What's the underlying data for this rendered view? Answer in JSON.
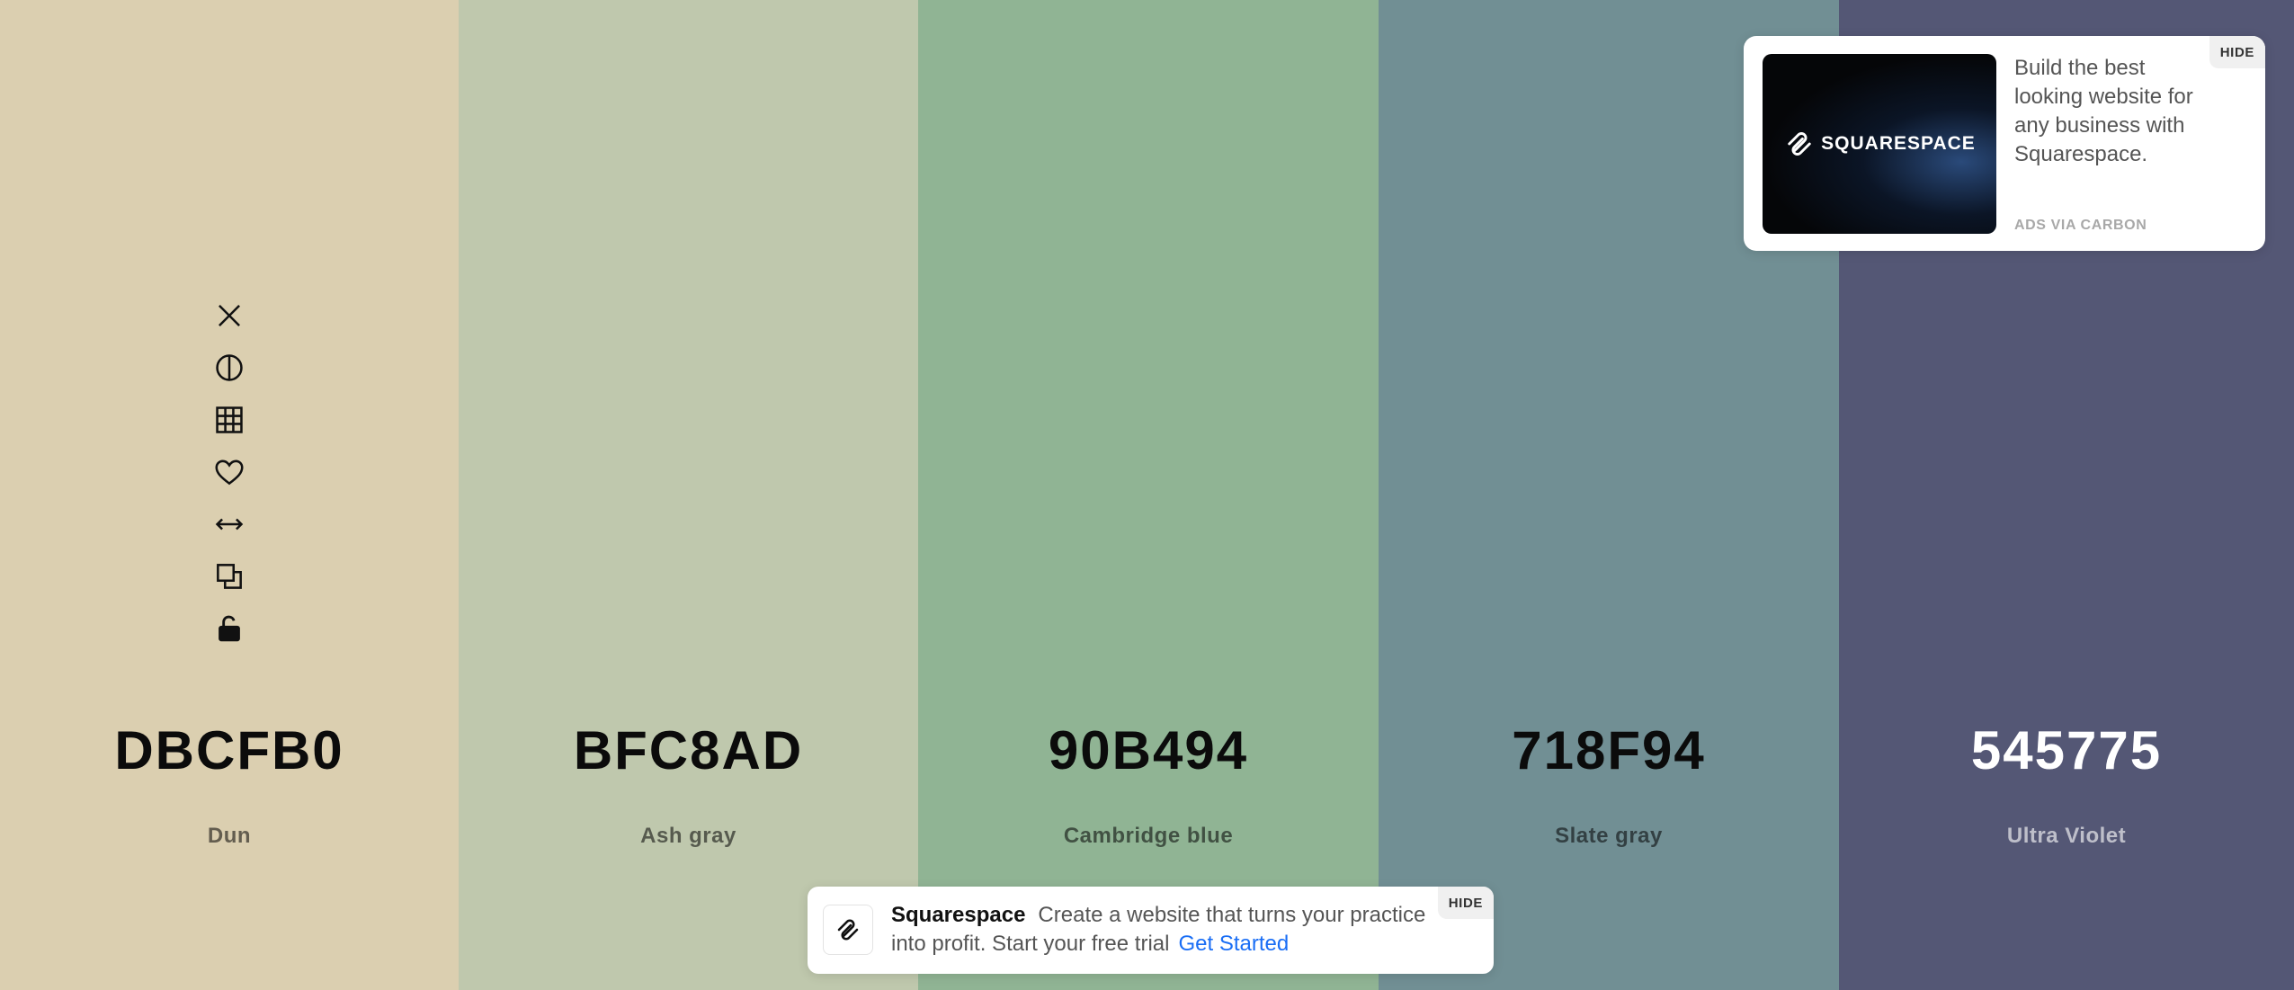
{
  "palette": [
    {
      "hex": "DBCFB0",
      "name": "Dun",
      "color": "#DBCFB0",
      "tone": "dark"
    },
    {
      "hex": "BFC8AD",
      "name": "Ash gray",
      "color": "#BFC8AD",
      "tone": "dark"
    },
    {
      "hex": "90B494",
      "name": "Cambridge blue",
      "color": "#90B494",
      "tone": "dark"
    },
    {
      "hex": "718F94",
      "name": "Slate gray",
      "color": "#718F94",
      "tone": "dark"
    },
    {
      "hex": "545775",
      "name": "Ultra Violet",
      "color": "#545775",
      "tone": "light"
    }
  ],
  "tools": [
    {
      "name": "remove-color-icon",
      "icon": "close"
    },
    {
      "name": "shades-icon",
      "icon": "half-circle"
    },
    {
      "name": "view-shades-grid-icon",
      "icon": "grid"
    },
    {
      "name": "favorite-icon",
      "icon": "heart"
    },
    {
      "name": "drag-icon",
      "icon": "arrows-horizontal"
    },
    {
      "name": "copy-icon",
      "icon": "copy"
    },
    {
      "name": "lock-icon",
      "icon": "lock-open"
    }
  ],
  "ad_top": {
    "brand": "SQUARESPACE",
    "text": "Build the best looking website for any business with Squarespace.",
    "via": "ADS VIA CARBON",
    "hide_label": "HIDE"
  },
  "ad_bottom": {
    "brand": "Squarespace",
    "text": "Create a website that turns your practice into profit. Start your free trial",
    "cta": "Get Started",
    "hide_label": "HIDE"
  }
}
